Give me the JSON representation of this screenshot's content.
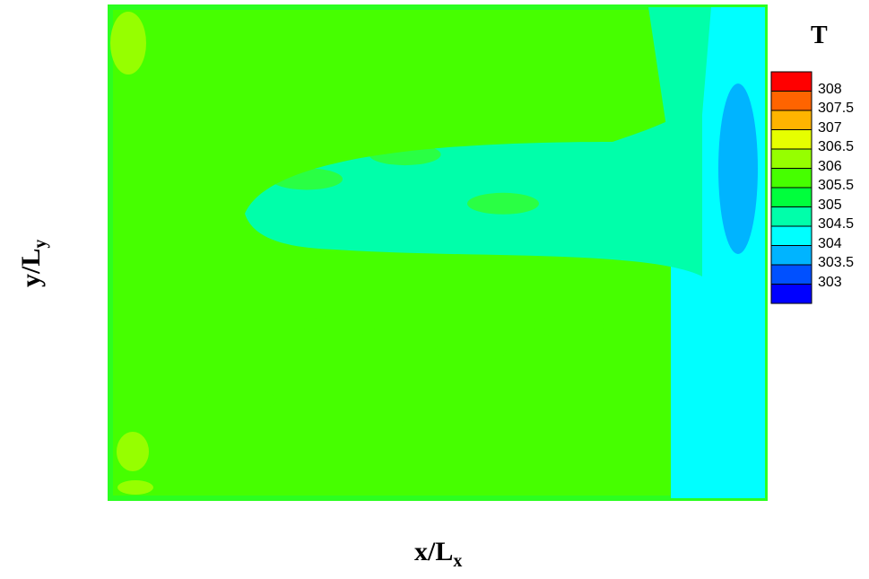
{
  "chart_data": {
    "type": "heatmap",
    "xlabel": {
      "main": "x/L",
      "sub": "x"
    },
    "ylabel": {
      "main": "y/L",
      "sub": "y"
    },
    "legend": {
      "title": "T",
      "placement": "right",
      "levels": [
        {
          "value": "308",
          "color": "#ff0000"
        },
        {
          "value": "307.5",
          "color": "#ff6400"
        },
        {
          "value": "307",
          "color": "#ffb400"
        },
        {
          "value": "306.5",
          "color": "#e6ff00"
        },
        {
          "value": "306",
          "color": "#96ff00"
        },
        {
          "value": "305.5",
          "color": "#46ff00"
        },
        {
          "value": "305",
          "color": "#00ff3c"
        },
        {
          "value": "304.5",
          "color": "#00ffaa"
        },
        {
          "value": "304",
          "color": "#00ffff"
        },
        {
          "value": "303.5",
          "color": "#00b4ff"
        },
        {
          "value": "303",
          "color": "#0050ff"
        },
        {
          "value": "",
          "color": "#0000ff"
        }
      ]
    },
    "field_description_levels": {
      "background": 305.5,
      "center_band": 304.5,
      "right_strip": 304,
      "right_cold_spot": 303.5,
      "corner_warm_spots": 306
    }
  }
}
